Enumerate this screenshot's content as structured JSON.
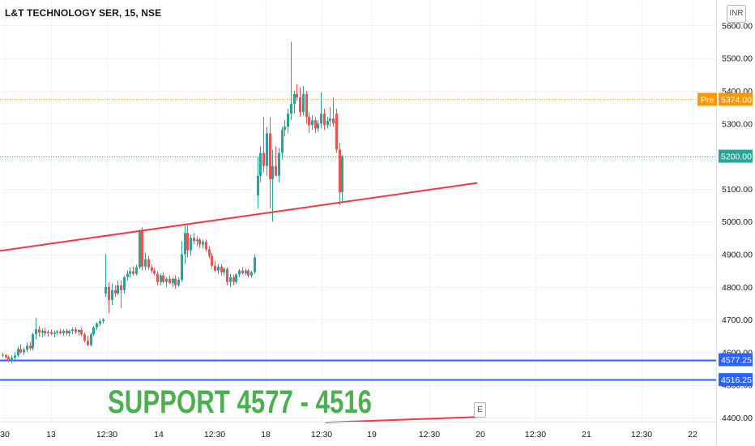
{
  "header": {
    "title": "L&T TECHNOLOGY SER, 15, NSE",
    "currency": "INR"
  },
  "annotation": {
    "support_text": "SUPPORT 4577 - 4516",
    "event_marker": "E"
  },
  "colors": {
    "up": "#26a69a",
    "down": "#ef5350",
    "trendline": "#f23645",
    "support_line": "#2962ff",
    "support_text": "#4caf50",
    "pre_market": "#ff9800",
    "last_price": "#26a69a"
  },
  "chart_data": {
    "type": "candlestick",
    "y_axis": {
      "min": 4400,
      "max": 5600,
      "ticks": [
        "4400.00",
        "4500.00",
        "4600.00",
        "4700.00",
        "4800.00",
        "4900.00",
        "5000.00",
        "5100.00",
        "5200.00",
        "5300.00",
        "5400.00",
        "5500.00",
        "5600.00"
      ]
    },
    "x_axis": {
      "tick_labels": [
        "30",
        "13",
        "12:30",
        "14",
        "12:30",
        "18",
        "12:30",
        "19",
        "12:30",
        "20",
        "12:30",
        "21",
        "12:30",
        "22"
      ]
    },
    "price_labels": [
      {
        "name": "pre-market",
        "tag": "Pre",
        "value": 5374,
        "label": "5374.00",
        "color": "#ff9800"
      },
      {
        "name": "last-price",
        "value": 5200,
        "label": "5200.00",
        "color": "#26a69a"
      },
      {
        "name": "support-upper",
        "value": 4577.25,
        "label": "4577.25",
        "color": "#2962ff"
      },
      {
        "name": "support-lower",
        "value": 4516.25,
        "label": "4516.25",
        "color": "#2962ff"
      }
    ],
    "trendlines": [
      {
        "name": "rising-trendline",
        "from": {
          "bar": -1,
          "price": 4910
        },
        "to": {
          "bar": 156.5,
          "price": 5118
        }
      },
      {
        "name": "future-trendline",
        "from": {
          "bar": 106.5,
          "price": 4385
        },
        "to": {
          "bar": 156.5,
          "price": 4402
        }
      }
    ],
    "candles": [
      {
        "o": 4590,
        "h": 4598,
        "l": 4585,
        "c": 4592
      },
      {
        "o": 4592,
        "h": 4594,
        "l": 4580,
        "c": 4585
      },
      {
        "o": 4585,
        "h": 4590,
        "l": 4570,
        "c": 4578
      },
      {
        "o": 4578,
        "h": 4590,
        "l": 4565,
        "c": 4583
      },
      {
        "o": 4583,
        "h": 4600,
        "l": 4578,
        "c": 4590
      },
      {
        "o": 4590,
        "h": 4618,
        "l": 4585,
        "c": 4610
      },
      {
        "o": 4610,
        "h": 4625,
        "l": 4595,
        "c": 4600
      },
      {
        "o": 4600,
        "h": 4615,
        "l": 4590,
        "c": 4608
      },
      {
        "o": 4608,
        "h": 4630,
        "l": 4600,
        "c": 4620
      },
      {
        "o": 4620,
        "h": 4632,
        "l": 4605,
        "c": 4612
      },
      {
        "o": 4612,
        "h": 4660,
        "l": 4605,
        "c": 4655
      },
      {
        "o": 4655,
        "h": 4705,
        "l": 4640,
        "c": 4670
      },
      {
        "o": 4670,
        "h": 4680,
        "l": 4648,
        "c": 4660
      },
      {
        "o": 4660,
        "h": 4672,
        "l": 4645,
        "c": 4665
      },
      {
        "o": 4665,
        "h": 4675,
        "l": 4650,
        "c": 4658
      },
      {
        "o": 4658,
        "h": 4668,
        "l": 4648,
        "c": 4662
      },
      {
        "o": 4662,
        "h": 4670,
        "l": 4652,
        "c": 4656
      },
      {
        "o": 4656,
        "h": 4666,
        "l": 4645,
        "c": 4660
      },
      {
        "o": 4660,
        "h": 4668,
        "l": 4652,
        "c": 4664
      },
      {
        "o": 4664,
        "h": 4672,
        "l": 4655,
        "c": 4658
      },
      {
        "o": 4658,
        "h": 4670,
        "l": 4650,
        "c": 4666
      },
      {
        "o": 4666,
        "h": 4672,
        "l": 4652,
        "c": 4658
      },
      {
        "o": 4658,
        "h": 4668,
        "l": 4648,
        "c": 4665
      },
      {
        "o": 4665,
        "h": 4675,
        "l": 4655,
        "c": 4670
      },
      {
        "o": 4670,
        "h": 4678,
        "l": 4656,
        "c": 4662
      },
      {
        "o": 4662,
        "h": 4670,
        "l": 4650,
        "c": 4668
      },
      {
        "o": 4668,
        "h": 4675,
        "l": 4650,
        "c": 4655
      },
      {
        "o": 4655,
        "h": 4660,
        "l": 4630,
        "c": 4635
      },
      {
        "o": 4635,
        "h": 4650,
        "l": 4618,
        "c": 4622
      },
      {
        "o": 4622,
        "h": 4660,
        "l": 4618,
        "c": 4655
      },
      {
        "o": 4655,
        "h": 4680,
        "l": 4650,
        "c": 4676
      },
      {
        "o": 4676,
        "h": 4692,
        "l": 4668,
        "c": 4688
      },
      {
        "o": 4688,
        "h": 4702,
        "l": 4680,
        "c": 4695
      },
      {
        "o": 4695,
        "h": 4705,
        "l": 4688,
        "c": 4700
      },
      {
        "o": 4780,
        "h": 4900,
        "l": 4770,
        "c": 4800
      },
      {
        "o": 4800,
        "h": 4815,
        "l": 4720,
        "c": 4760
      },
      {
        "o": 4760,
        "h": 4810,
        "l": 4745,
        "c": 4790
      },
      {
        "o": 4790,
        "h": 4805,
        "l": 4770,
        "c": 4780
      },
      {
        "o": 4780,
        "h": 4820,
        "l": 4775,
        "c": 4805
      },
      {
        "o": 4805,
        "h": 4820,
        "l": 4735,
        "c": 4790
      },
      {
        "o": 4790,
        "h": 4835,
        "l": 4780,
        "c": 4830
      },
      {
        "o": 4830,
        "h": 4850,
        "l": 4820,
        "c": 4840
      },
      {
        "o": 4840,
        "h": 4860,
        "l": 4828,
        "c": 4848
      },
      {
        "o": 4848,
        "h": 4862,
        "l": 4835,
        "c": 4840
      },
      {
        "o": 4840,
        "h": 4868,
        "l": 4835,
        "c": 4860
      },
      {
        "o": 4860,
        "h": 4975,
        "l": 4855,
        "c": 4970
      },
      {
        "o": 4970,
        "h": 4982,
        "l": 4850,
        "c": 4862
      },
      {
        "o": 4862,
        "h": 4905,
        "l": 4850,
        "c": 4885
      },
      {
        "o": 4885,
        "h": 4895,
        "l": 4852,
        "c": 4860
      },
      {
        "o": 4860,
        "h": 4868,
        "l": 4842,
        "c": 4850
      },
      {
        "o": 4850,
        "h": 4858,
        "l": 4835,
        "c": 4840
      },
      {
        "o": 4840,
        "h": 4848,
        "l": 4805,
        "c": 4815
      },
      {
        "o": 4815,
        "h": 4840,
        "l": 4805,
        "c": 4835
      },
      {
        "o": 4835,
        "h": 4845,
        "l": 4810,
        "c": 4815
      },
      {
        "o": 4815,
        "h": 4830,
        "l": 4800,
        "c": 4825
      },
      {
        "o": 4825,
        "h": 4835,
        "l": 4808,
        "c": 4812
      },
      {
        "o": 4812,
        "h": 4830,
        "l": 4800,
        "c": 4825
      },
      {
        "o": 4825,
        "h": 4835,
        "l": 4795,
        "c": 4805
      },
      {
        "o": 4805,
        "h": 4830,
        "l": 4800,
        "c": 4822
      },
      {
        "o": 4822,
        "h": 4940,
        "l": 4815,
        "c": 4900
      },
      {
        "o": 4900,
        "h": 4990,
        "l": 4870,
        "c": 4965
      },
      {
        "o": 4965,
        "h": 4988,
        "l": 4890,
        "c": 4912
      },
      {
        "o": 4912,
        "h": 4960,
        "l": 4895,
        "c": 4950
      },
      {
        "o": 4950,
        "h": 4965,
        "l": 4930,
        "c": 4940
      },
      {
        "o": 4940,
        "h": 4955,
        "l": 4925,
        "c": 4945
      },
      {
        "o": 4945,
        "h": 4950,
        "l": 4920,
        "c": 4930
      },
      {
        "o": 4930,
        "h": 4945,
        "l": 4918,
        "c": 4938
      },
      {
        "o": 4938,
        "h": 4945,
        "l": 4908,
        "c": 4915
      },
      {
        "o": 4915,
        "h": 4925,
        "l": 4888,
        "c": 4895
      },
      {
        "o": 4895,
        "h": 4905,
        "l": 4858,
        "c": 4865
      },
      {
        "o": 4865,
        "h": 4880,
        "l": 4845,
        "c": 4850
      },
      {
        "o": 4850,
        "h": 4870,
        "l": 4840,
        "c": 4862
      },
      {
        "o": 4862,
        "h": 4870,
        "l": 4835,
        "c": 4845
      },
      {
        "o": 4845,
        "h": 4860,
        "l": 4835,
        "c": 4855
      },
      {
        "o": 4855,
        "h": 4860,
        "l": 4805,
        "c": 4815
      },
      {
        "o": 4815,
        "h": 4840,
        "l": 4800,
        "c": 4830
      },
      {
        "o": 4830,
        "h": 4838,
        "l": 4805,
        "c": 4815
      },
      {
        "o": 4815,
        "h": 4842,
        "l": 4810,
        "c": 4838
      },
      {
        "o": 4838,
        "h": 4855,
        "l": 4830,
        "c": 4850
      },
      {
        "o": 4850,
        "h": 4860,
        "l": 4838,
        "c": 4842
      },
      {
        "o": 4842,
        "h": 4856,
        "l": 4835,
        "c": 4850
      },
      {
        "o": 4850,
        "h": 4855,
        "l": 4830,
        "c": 4835
      },
      {
        "o": 4835,
        "h": 4850,
        "l": 4828,
        "c": 4845
      },
      {
        "o": 4845,
        "h": 4900,
        "l": 4840,
        "c": 4890
      },
      {
        "o": 5080,
        "h": 5200,
        "l": 5040,
        "c": 5140
      },
      {
        "o": 5140,
        "h": 5230,
        "l": 5120,
        "c": 5210
      },
      {
        "o": 5210,
        "h": 5320,
        "l": 5150,
        "c": 5170
      },
      {
        "o": 5170,
        "h": 5290,
        "l": 5140,
        "c": 5270
      },
      {
        "o": 5270,
        "h": 5320,
        "l": 5040,
        "c": 5130
      },
      {
        "o": 5130,
        "h": 5220,
        "l": 5000,
        "c": 5170
      },
      {
        "o": 5170,
        "h": 5230,
        "l": 5145,
        "c": 5140
      },
      {
        "o": 5140,
        "h": 5225,
        "l": 5120,
        "c": 5210
      },
      {
        "o": 5210,
        "h": 5290,
        "l": 5190,
        "c": 5280
      },
      {
        "o": 5280,
        "h": 5310,
        "l": 5260,
        "c": 5290
      },
      {
        "o": 5290,
        "h": 5345,
        "l": 5270,
        "c": 5330
      },
      {
        "o": 5330,
        "h": 5550,
        "l": 5310,
        "c": 5360
      },
      {
        "o": 5360,
        "h": 5400,
        "l": 5330,
        "c": 5390
      },
      {
        "o": 5390,
        "h": 5420,
        "l": 5370,
        "c": 5380
      },
      {
        "o": 5380,
        "h": 5410,
        "l": 5320,
        "c": 5335
      },
      {
        "o": 5335,
        "h": 5415,
        "l": 5325,
        "c": 5390
      },
      {
        "o": 5390,
        "h": 5400,
        "l": 5300,
        "c": 5320
      },
      {
        "o": 5320,
        "h": 5335,
        "l": 5270,
        "c": 5295
      },
      {
        "o": 5295,
        "h": 5325,
        "l": 5280,
        "c": 5310
      },
      {
        "o": 5310,
        "h": 5320,
        "l": 5270,
        "c": 5285
      },
      {
        "o": 5285,
        "h": 5310,
        "l": 5275,
        "c": 5300
      },
      {
        "o": 5300,
        "h": 5395,
        "l": 5285,
        "c": 5330
      },
      {
        "o": 5330,
        "h": 5345,
        "l": 5280,
        "c": 5295
      },
      {
        "o": 5295,
        "h": 5320,
        "l": 5285,
        "c": 5308
      },
      {
        "o": 5308,
        "h": 5350,
        "l": 5290,
        "c": 5315
      },
      {
        "o": 5315,
        "h": 5380,
        "l": 5290,
        "c": 5300
      },
      {
        "o": 5330,
        "h": 5345,
        "l": 5210,
        "c": 5220
      },
      {
        "o": 5220,
        "h": 5240,
        "l": 5050,
        "c": 5090
      },
      {
        "o": 5090,
        "h": 5205,
        "l": 5060,
        "c": 5200
      }
    ]
  }
}
